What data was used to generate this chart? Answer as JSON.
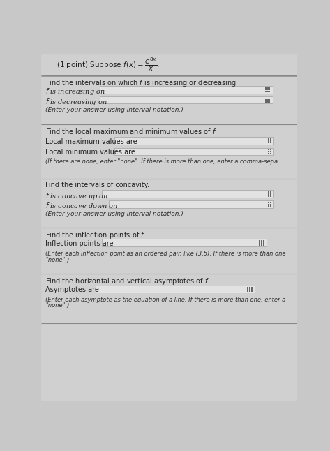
{
  "bg_color": "#c8c8c8",
  "form_bg": "#d6d6d6",
  "section_header_bg": "#cbcbcb",
  "input_box_color": "#e8e8e8",
  "border_color": "#999999",
  "text_color": "#222222",
  "link_color": "#4466aa",
  "title": "(1 point) Suppose $f(x) = \\dfrac{e^{8x}}{x}$.",
  "s1_header": "Find the intervals on which $f$ is increasing or decreasing.",
  "s1_l1": "$f$ is increasing on",
  "s1_l2": "$f$ is decreasing on",
  "s1_note": "(Enter your answer using interval notation.)",
  "s2_header": "Find the local maximum and minimum values of $f$.",
  "s2_l1": "Local maximum values are",
  "s2_l2": "Local minimum values are",
  "s2_note": "(If there are none, enter \"none\". If there is more than one, enter a comma-sepa",
  "s3_header": "Find the intervals of concavity.",
  "s3_l1": "$f$ is concave up on",
  "s3_l2": "$f$ is concave down on",
  "s3_note": "(Enter your answer using interval notation.)",
  "s4_header": "Find the inflection points of $f$.",
  "s4_l1": "Inflection points are",
  "s4_note1": "(Enter each inflection point as an ordered pair, like (3,5). If there is more than one",
  "s4_note2": "\"none\".)",
  "s5_header": "Find the horizontal and vertical asymptotes of $f$.",
  "s5_l1": "Asymptotes are",
  "s5_note1": "(Enter each asymptote as the equation of a line. If there is more than one, enter a",
  "s5_note2": "\"none\".)"
}
